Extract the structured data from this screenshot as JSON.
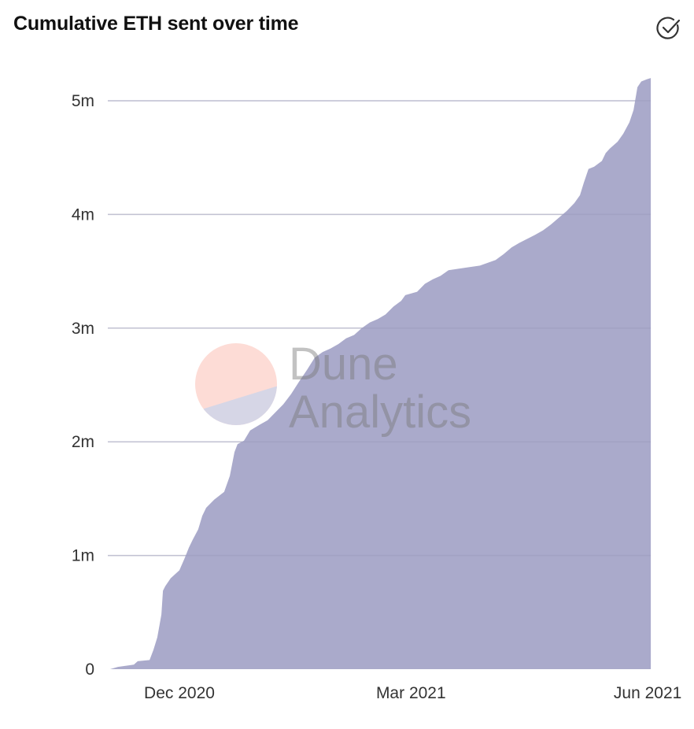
{
  "header": {
    "title": "Cumulative ETH sent over time",
    "status_icon": "check-circle-icon"
  },
  "watermark": {
    "line1": "Dune",
    "line2": "Analytics"
  },
  "colors": {
    "area": "#aaaacb",
    "grid": "#e8e8e8",
    "logo_top": "#fddcd6",
    "logo_bottom": "#d6d6e6"
  },
  "chart_data": {
    "type": "area",
    "title": "Cumulative ETH sent over time",
    "x_unit": "days since 2020-12-01",
    "y_unit": "ETH",
    "ylim": [
      0,
      5200000
    ],
    "grid": true,
    "x_ticks": [
      {
        "label": "Dec 2020",
        "x": 0
      },
      {
        "label": "Mar 2021",
        "x": 90
      },
      {
        "label": "Jun 2021",
        "x": 182
      }
    ],
    "y_ticks": [
      {
        "label": "0",
        "y": 0
      },
      {
        "label": "1m",
        "y": 1000000
      },
      {
        "label": "2m",
        "y": 2000000
      },
      {
        "label": "3m",
        "y": 3000000
      },
      {
        "label": "4m",
        "y": 4000000
      },
      {
        "label": "5m",
        "y": 5000000
      }
    ],
    "points": [
      [
        -26.9,
        0
      ],
      [
        -23.9,
        0.02
      ],
      [
        -17.7,
        0.04
      ],
      [
        -16.2,
        0.07
      ],
      [
        -11.6,
        0.08
      ],
      [
        -10.1,
        0.17
      ],
      [
        -8.6,
        0.28
      ],
      [
        -7.0,
        0.48
      ],
      [
        -6.4,
        0.69
      ],
      [
        -5.5,
        0.73
      ],
      [
        -3.4,
        0.8
      ],
      [
        0,
        0.87
      ],
      [
        2.1,
        0.98
      ],
      [
        3.7,
        1.07
      ],
      [
        5.2,
        1.14
      ],
      [
        7.3,
        1.23
      ],
      [
        8.9,
        1.35
      ],
      [
        10.4,
        1.42
      ],
      [
        13.5,
        1.49
      ],
      [
        17.4,
        1.56
      ],
      [
        19.6,
        1.7
      ],
      [
        21.4,
        1.91
      ],
      [
        22.6,
        1.98
      ],
      [
        25.1,
        2.01
      ],
      [
        27.5,
        2.1
      ],
      [
        31.2,
        2.15
      ],
      [
        34.3,
        2.19
      ],
      [
        37.3,
        2.26
      ],
      [
        40.4,
        2.33
      ],
      [
        43.4,
        2.42
      ],
      [
        46.5,
        2.53
      ],
      [
        49.5,
        2.63
      ],
      [
        52.6,
        2.74
      ],
      [
        55.7,
        2.79
      ],
      [
        58.7,
        2.82
      ],
      [
        61.8,
        2.86
      ],
      [
        64.8,
        2.91
      ],
      [
        67.9,
        2.94
      ],
      [
        70.9,
        3.0
      ],
      [
        74.0,
        3.05
      ],
      [
        77.1,
        3.08
      ],
      [
        80.1,
        3.12
      ],
      [
        83.2,
        3.19
      ],
      [
        86.2,
        3.24
      ],
      [
        87.8,
        3.29
      ],
      [
        92.4,
        3.32
      ],
      [
        95.4,
        3.39
      ],
      [
        98.5,
        3.43
      ],
      [
        101.5,
        3.46
      ],
      [
        104.6,
        3.51
      ],
      [
        110.7,
        3.53
      ],
      [
        116.8,
        3.55
      ],
      [
        122.9,
        3.6
      ],
      [
        126.0,
        3.65
      ],
      [
        129.1,
        3.71
      ],
      [
        132.1,
        3.75
      ],
      [
        138.2,
        3.82
      ],
      [
        141.3,
        3.86
      ],
      [
        144.3,
        3.91
      ],
      [
        147.4,
        3.97
      ],
      [
        150.5,
        4.03
      ],
      [
        153.5,
        4.1
      ],
      [
        155.7,
        4.17
      ],
      [
        157.2,
        4.28
      ],
      [
        159.0,
        4.4
      ],
      [
        161.2,
        4.42
      ],
      [
        164.2,
        4.47
      ],
      [
        165.7,
        4.54
      ],
      [
        167.3,
        4.58
      ],
      [
        170.3,
        4.64
      ],
      [
        172.5,
        4.71
      ],
      [
        174.9,
        4.81
      ],
      [
        176.5,
        4.92
      ],
      [
        178.0,
        5.12
      ],
      [
        179.5,
        5.17
      ],
      [
        181.7,
        5.19
      ],
      [
        183.2,
        5.2
      ]
    ],
    "points_format": "[x (days), cumulative ETH in millions]"
  }
}
